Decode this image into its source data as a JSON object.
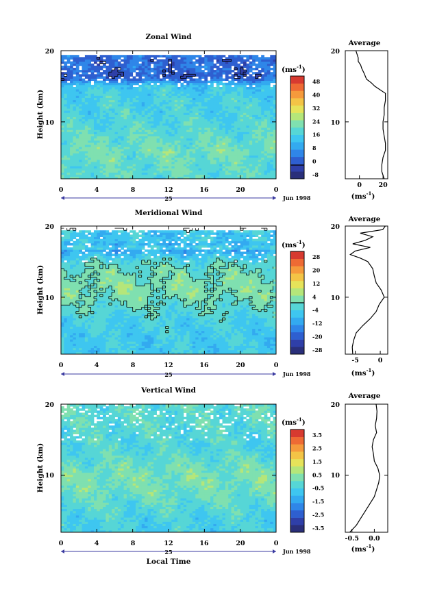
{
  "chart_data": [
    {
      "type": "heatmap",
      "title": "Zonal Wind",
      "ylabel": "Height (km)",
      "ylim": [
        2,
        20
      ],
      "yticks": [
        "20",
        "10"
      ],
      "xlim": [
        0,
        24
      ],
      "xticks": [
        "0",
        "4",
        "8",
        "12",
        "16",
        "20",
        "0"
      ],
      "date_marker": "25",
      "date_label": "Jun 1998",
      "colorbar": {
        "unit": "(ms",
        "unit_sup": "-1",
        "unit_end": ")",
        "labels": [
          "48",
          "40",
          "32",
          "24",
          "16",
          "8",
          "0",
          "-8"
        ],
        "vmin": -8,
        "vmax": 52,
        "zero_line_value": 0,
        "colors": [
          "#2a2f7a",
          "#2f3fa8",
          "#2e5fd0",
          "#2f86e8",
          "#33aaf0",
          "#3ec6f0",
          "#56d6d6",
          "#7fe0b0",
          "#b5e67a",
          "#e6e35a",
          "#f3c446",
          "#f59a3c",
          "#ee6a34",
          "#d73a30"
        ]
      },
      "field": {
        "base_value": 20,
        "height_profile": [
          [
            2,
            20
          ],
          [
            3,
            21
          ],
          [
            4,
            21
          ],
          [
            5,
            22
          ],
          [
            6,
            23
          ],
          [
            7,
            22
          ],
          [
            8,
            21
          ],
          [
            9,
            20
          ],
          [
            10,
            19
          ],
          [
            11,
            18
          ],
          [
            12,
            18
          ],
          [
            13,
            18
          ],
          [
            14,
            17
          ],
          [
            15,
            16
          ],
          [
            15.6,
            10
          ],
          [
            16,
            4
          ],
          [
            16.5,
            2
          ],
          [
            17,
            3
          ],
          [
            17.5,
            4
          ],
          [
            18,
            5
          ],
          [
            18.5,
            3
          ],
          [
            19,
            4
          ],
          [
            19.5,
            6
          ]
        ],
        "blank_above_km": 19.3
      },
      "average_profile": {
        "title": "Average",
        "xlim": [
          -12,
          24
        ],
        "xticks": [
          0,
          20
        ],
        "xtick_labels": [
          "0",
          "20"
        ],
        "xlabel": "(ms",
        "xlabel_sup": "-1",
        "xlabel_end": ")",
        "yticks": [
          "20",
          "10"
        ],
        "values": [
          [
            2,
            21
          ],
          [
            2.5,
            20
          ],
          [
            3,
            19
          ],
          [
            4,
            19
          ],
          [
            5,
            20
          ],
          [
            6,
            22
          ],
          [
            7,
            22
          ],
          [
            8,
            21
          ],
          [
            9,
            20
          ],
          [
            10,
            20
          ],
          [
            11,
            21
          ],
          [
            12,
            21
          ],
          [
            13,
            22
          ],
          [
            14,
            22
          ],
          [
            15,
            13
          ],
          [
            15.5,
            10
          ],
          [
            16,
            6
          ],
          [
            16.8,
            4
          ],
          [
            17.5,
            2
          ],
          [
            18,
            1
          ],
          [
            18.5,
            -1
          ],
          [
            19,
            -1
          ],
          [
            19.5,
            -2
          ],
          [
            20,
            -3
          ]
        ]
      }
    },
    {
      "type": "heatmap",
      "title": "Meridional Wind",
      "ylabel": "Height (km)",
      "ylim": [
        2,
        20
      ],
      "yticks": [
        "20",
        "10"
      ],
      "xlim": [
        0,
        24
      ],
      "xticks": [
        "0",
        "4",
        "8",
        "12",
        "16",
        "20",
        "0"
      ],
      "date_marker": "25",
      "date_label": "Jun 1998",
      "colorbar": {
        "unit": "(ms",
        "unit_sup": "-1",
        "unit_end": ")",
        "labels": [
          "28",
          "20",
          "12",
          "4",
          "-4",
          "-12",
          "-20",
          "-28"
        ],
        "vmin": -32,
        "vmax": 32,
        "zero_line_value": 0,
        "colors": [
          "#2a2f7a",
          "#2f3fa8",
          "#2e5fd0",
          "#2f86e8",
          "#33aaf0",
          "#3ec6f0",
          "#56d6d6",
          "#7fe0b0",
          "#b5e67a",
          "#e6e35a",
          "#f3c446",
          "#f59a3c",
          "#ee6a34",
          "#d73a30"
        ]
      },
      "field": {
        "base_value": -2,
        "height_profile": [
          [
            2,
            -6
          ],
          [
            4,
            -6
          ],
          [
            6,
            -5
          ],
          [
            7,
            -4
          ],
          [
            8,
            -2
          ],
          [
            9,
            -1
          ],
          [
            10,
            1
          ],
          [
            11,
            2
          ],
          [
            12,
            2
          ],
          [
            13,
            1
          ],
          [
            14,
            0
          ],
          [
            15,
            -2
          ],
          [
            16,
            -8
          ],
          [
            16.5,
            -12
          ],
          [
            17,
            -4
          ],
          [
            17.5,
            -10
          ],
          [
            18,
            -6
          ],
          [
            19,
            -8
          ],
          [
            19.5,
            -3
          ]
        ],
        "blank_above_km": 19.3
      },
      "average_profile": {
        "title": "Average",
        "xlim": [
          -7,
          1.5
        ],
        "xticks": [
          -5,
          0
        ],
        "xtick_labels": [
          "-5",
          "0"
        ],
        "xlabel": "(ms",
        "xlabel_sup": "-1",
        "xlabel_end": ")",
        "yticks": [
          "20",
          "10"
        ],
        "values": [
          [
            2,
            -5.5
          ],
          [
            3,
            -5.6
          ],
          [
            4,
            -5.3
          ],
          [
            5,
            -4.8
          ],
          [
            6,
            -3.5
          ],
          [
            7,
            -2
          ],
          [
            8,
            -0.8
          ],
          [
            9,
            -0.2
          ],
          [
            10,
            0.8
          ],
          [
            11,
            0.2
          ],
          [
            12,
            -0.8
          ],
          [
            13,
            -1.2
          ],
          [
            14,
            -1.5
          ],
          [
            15,
            -2.5
          ],
          [
            15.5,
            -4
          ],
          [
            16,
            -6
          ],
          [
            16.5,
            -5
          ],
          [
            17,
            -2
          ],
          [
            17.5,
            -5.5
          ],
          [
            18,
            -3
          ],
          [
            18.5,
            -1.5
          ],
          [
            19,
            -4
          ],
          [
            19.5,
            0.5
          ],
          [
            20,
            1
          ]
        ]
      }
    },
    {
      "type": "heatmap",
      "title": "Vertical Wind",
      "ylabel": "Height (km)",
      "xlabel": "Local Time",
      "ylim": [
        2,
        20
      ],
      "yticks": [
        "20",
        "10"
      ],
      "xlim": [
        0,
        24
      ],
      "xticks": [
        "0",
        "4",
        "8",
        "12",
        "16",
        "20",
        "0"
      ],
      "date_marker": "25",
      "date_label": "Jun 1998",
      "colorbar": {
        "unit": "(ms",
        "unit_sup": "-1",
        "unit_end": ")",
        "labels": [
          "3.5",
          "2.5",
          "1.5",
          "0.5",
          "-0.5",
          "-1.5",
          "-2.5",
          "-3.5"
        ],
        "vmin": -4,
        "vmax": 4,
        "colors": [
          "#2a2f7a",
          "#2f3fa8",
          "#2e5fd0",
          "#2f86e8",
          "#33aaf0",
          "#3ec6f0",
          "#56d6d6",
          "#7fe0b0",
          "#b5e67a",
          "#e6e35a",
          "#f3c446",
          "#f59a3c",
          "#ee6a34",
          "#d73a30"
        ]
      },
      "field": {
        "base_value": -0.3,
        "height_profile": [
          [
            2,
            -0.6
          ],
          [
            4,
            -0.5
          ],
          [
            6,
            -0.2
          ],
          [
            8,
            0.1
          ],
          [
            10,
            0.2
          ],
          [
            12,
            -0.1
          ],
          [
            14,
            -0.4
          ],
          [
            16,
            -0.3
          ],
          [
            18,
            -0.2
          ],
          [
            20,
            -0.2
          ]
        ],
        "blank_above_km": 20
      },
      "average_profile": {
        "title": "Average",
        "xlim": [
          -0.65,
          0.3
        ],
        "xticks": [
          -0.5,
          0.0
        ],
        "xtick_labels": [
          "-0.5",
          "0.0"
        ],
        "xlabel": "(ms",
        "xlabel_sup": "-1",
        "xlabel_end": ")",
        "yticks": [
          "20",
          "10"
        ],
        "values": [
          [
            2,
            -0.55
          ],
          [
            3,
            -0.4
          ],
          [
            4,
            -0.3
          ],
          [
            5,
            -0.2
          ],
          [
            6,
            -0.1
          ],
          [
            7,
            0.0
          ],
          [
            8,
            0.05
          ],
          [
            9,
            0.1
          ],
          [
            10,
            0.12
          ],
          [
            11,
            0.08
          ],
          [
            12,
            0.0
          ],
          [
            13,
            -0.02
          ],
          [
            14,
            -0.05
          ],
          [
            15,
            -0.02
          ],
          [
            16,
            0.05
          ],
          [
            17,
            0.02
          ],
          [
            18,
            0.05
          ],
          [
            19,
            0.06
          ],
          [
            20,
            0.04
          ]
        ]
      }
    }
  ]
}
